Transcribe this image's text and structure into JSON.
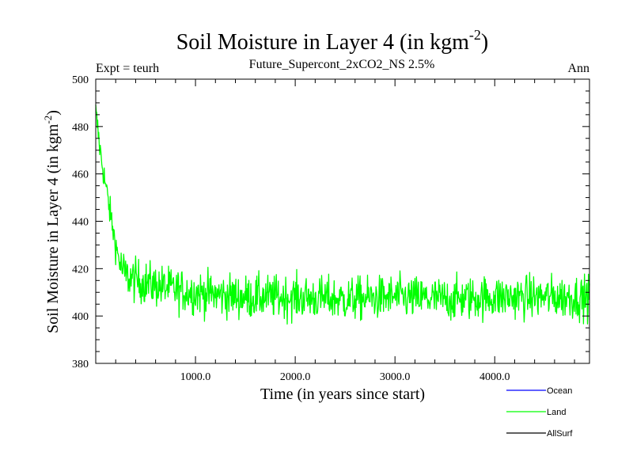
{
  "chart_data": {
    "type": "line",
    "title": "Soil Moisture in Layer 4 (in kgm",
    "title_sup": "-2",
    "title_close": ")",
    "subtitle": "Future_Supercont_2xCO2_NS 2.5%",
    "left_label": "Expt = teurh",
    "right_label": "Ann",
    "xlabel": "Time (in years since start)",
    "ylabel": "Soil Moisture in Layer 4 (in kgm",
    "ylabel_sup": "-2",
    "ylabel_close": ")",
    "xlim": [
      0,
      4950
    ],
    "ylim": [
      380,
      500
    ],
    "x_ticks": [
      1000,
      2000,
      3000,
      4000
    ],
    "x_tick_labels": [
      "1000.0",
      "2000.0",
      "3000.0",
      "4000.0"
    ],
    "y_ticks": [
      380,
      400,
      420,
      440,
      460,
      480,
      500
    ],
    "y_tick_labels": [
      "380",
      "400",
      "420",
      "440",
      "460",
      "480",
      "500"
    ],
    "grid": false,
    "legend_placement": "bottom-right",
    "series": [
      {
        "name": "Ocean",
        "color": "#0000ff",
        "x": [],
        "y": []
      },
      {
        "name": "Land",
        "color": "#00ff00",
        "x": [
          0,
          50,
          100,
          150,
          200,
          250,
          300,
          400,
          500,
          600,
          800,
          1000,
          1200,
          1500,
          2000,
          2500,
          3000,
          3500,
          4000,
          4500,
          4950
        ],
        "y": [
          486,
          468,
          455,
          442,
          430,
          421,
          417,
          415,
          414,
          413,
          411,
          410,
          409,
          408,
          408,
          407,
          408,
          407,
          408,
          408,
          408
        ]
      },
      {
        "name": "AllSurf",
        "color": "#000000",
        "x": [],
        "y": []
      }
    ]
  }
}
